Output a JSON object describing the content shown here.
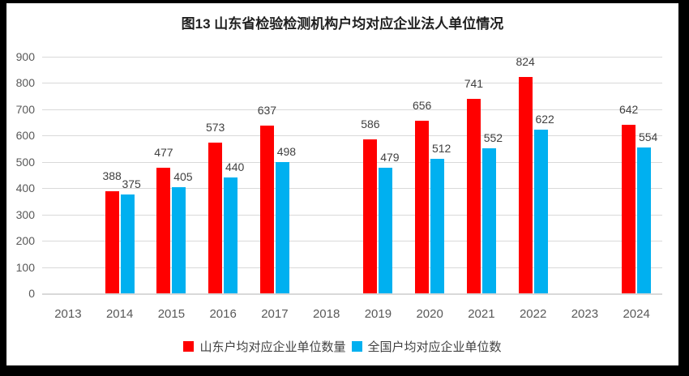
{
  "frame": {
    "border_color": "#000000",
    "background": "#FFFFFF"
  },
  "chart_data": {
    "type": "bar",
    "title": "图13 山东省检验检测机构户均对应企业法人单位情况",
    "categories": [
      "2013",
      "2014",
      "2015",
      "2016",
      "2017",
      "2018",
      "2019",
      "2020",
      "2021",
      "2022",
      "2023",
      "2024"
    ],
    "series": [
      {
        "name": "山东户均对应企业单位数量",
        "color": "#FF0000",
        "values": [
          null,
          388,
          477,
          573,
          637,
          null,
          586,
          656,
          741,
          824,
          null,
          642
        ]
      },
      {
        "name": "全国户均对应企业单位数",
        "color": "#00B0F0",
        "values": [
          null,
          375,
          405,
          440,
          498,
          null,
          479,
          512,
          552,
          622,
          null,
          554
        ]
      }
    ],
    "ylim": [
      0,
      900
    ],
    "yticks": [
      0,
      100,
      200,
      300,
      400,
      500,
      600,
      700,
      800,
      900
    ],
    "grid": true,
    "legend_position": "bottom",
    "xlabel": "",
    "ylabel": "",
    "gridline_color": "#D9D9D9",
    "axis_label_color": "#595959",
    "value_label_color": "#404040",
    "title_color": "#1F1F1F"
  }
}
